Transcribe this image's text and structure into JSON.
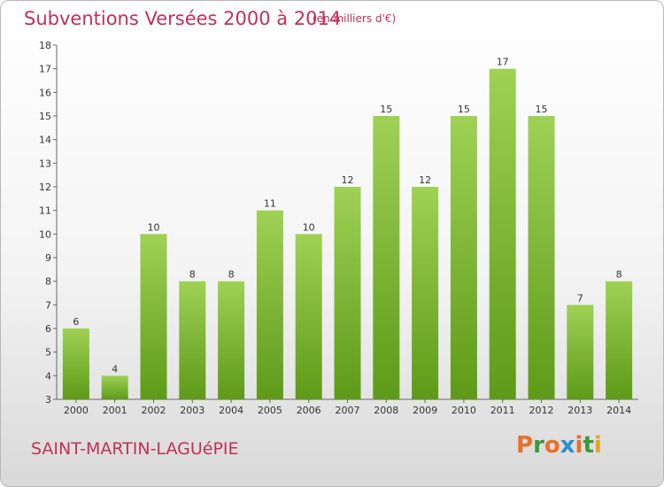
{
  "header": {
    "title": "Subventions Versées 2000 à 2014",
    "unit": "(en milliers d'€)"
  },
  "footer": {
    "commune": "SAINT-MARTIN-LAGUéPIE",
    "brand_letters": [
      "P",
      "r",
      "o",
      "x",
      "i",
      "t",
      "i"
    ],
    "brand_colors": [
      "#e8702a",
      "#3a9a3c",
      "#e8702a",
      "#2a8fd0",
      "#e8702a",
      "#3a9a3c",
      "#e8a02a"
    ]
  },
  "colors": {
    "bar_top": "#9fd155",
    "bar_bottom": "#5e9a18",
    "text_accent": "#c0305a"
  },
  "chart_data": {
    "type": "bar",
    "title": "Subventions Versées 2000 à 2014",
    "subtitle": "(en milliers d'€)",
    "categories": [
      "2000",
      "2001",
      "2002",
      "2003",
      "2004",
      "2005",
      "2006",
      "2007",
      "2008",
      "2009",
      "2010",
      "2011",
      "2012",
      "2013",
      "2014"
    ],
    "values": [
      6,
      4,
      10,
      8,
      8,
      11,
      10,
      12,
      15,
      12,
      15,
      17,
      15,
      7,
      8
    ],
    "ylim": [
      3,
      18
    ],
    "yticks": [
      3,
      4,
      5,
      6,
      7,
      8,
      9,
      10,
      11,
      12,
      13,
      14,
      15,
      16,
      17,
      18
    ],
    "grid": false,
    "data_labels": true
  }
}
